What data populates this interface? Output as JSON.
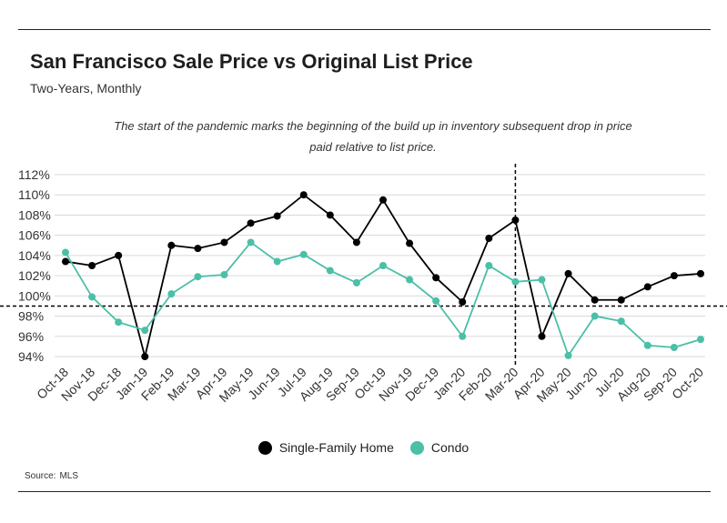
{
  "header": {
    "title": "San Francisco Sale Price vs Original List Price",
    "subtitle": "Two-Years, Monthly"
  },
  "annotation": {
    "line1": "The start of the pandemic marks the beginning of the build up in inventory subsequent drop in price",
    "line2": "paid relative to list price."
  },
  "source": {
    "label": "Source:",
    "value": "MLS"
  },
  "colors": {
    "single_family": "#000000",
    "condo": "#4bbfa8",
    "grid": "#d9d9d9"
  },
  "chart_data": {
    "type": "line",
    "title": "San Francisco Sale Price vs Original List Price",
    "subtitle": "Two-Years, Monthly",
    "categories": [
      "Oct-18",
      "Nov-18",
      "Dec-18",
      "Jan-19",
      "Feb-19",
      "Mar-19",
      "Apr-19",
      "May-19",
      "Jun-19",
      "Jul-19",
      "Aug-19",
      "Sep-19",
      "Oct-19",
      "Nov-19",
      "Dec-19",
      "Jan-20",
      "Feb-20",
      "Mar-20",
      "Apr-20",
      "May-20",
      "Jun-20",
      "Jul-20",
      "Aug-20",
      "Sep-20",
      "Oct-20"
    ],
    "yticks": [
      "112%",
      "110%",
      "108%",
      "106%",
      "104%",
      "102%",
      "100%",
      "98%",
      "96%",
      "94%"
    ],
    "ytick_values": [
      112,
      110,
      108,
      106,
      104,
      102,
      100,
      98,
      96,
      94
    ],
    "ylim": [
      93,
      113
    ],
    "series": [
      {
        "name": "Single-Family Home",
        "values": [
          103.4,
          103.0,
          104.0,
          94.0,
          105.0,
          104.7,
          105.3,
          107.2,
          107.9,
          110.0,
          108.0,
          105.3,
          109.5,
          105.2,
          101.8,
          99.4,
          105.7,
          107.5,
          96.0,
          102.2,
          99.6,
          99.6,
          100.9,
          102.0,
          102.2
        ]
      },
      {
        "name": "Condo",
        "values": [
          104.3,
          99.9,
          97.4,
          96.6,
          100.2,
          101.9,
          102.1,
          105.3,
          103.4,
          104.1,
          102.5,
          101.3,
          103.0,
          101.6,
          99.5,
          96.0,
          103.0,
          101.4,
          101.6,
          94.1,
          98.0,
          97.5,
          95.1,
          94.9,
          95.7
        ]
      }
    ],
    "reference_lines": {
      "horizontal_at": 99,
      "vertical_at_category": "Mar-20"
    },
    "grid": true,
    "legend_position": "bottom"
  }
}
